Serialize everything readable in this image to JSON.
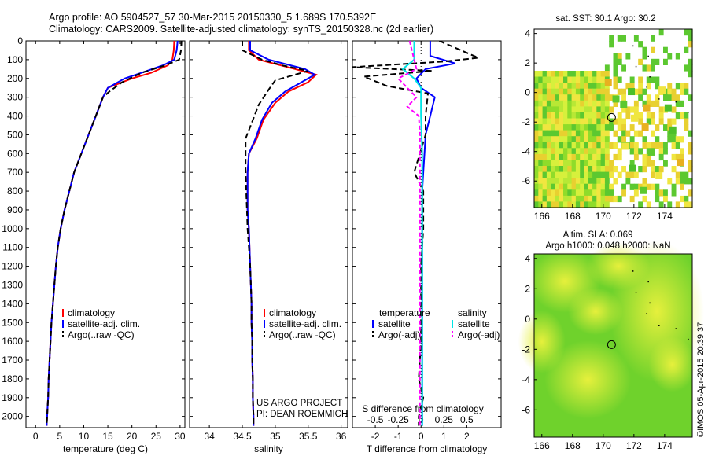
{
  "header": {
    "line1": "Argo profile: AO 5904527_57 30-Mar-2015 20150330_5 1.689S 170.5392E",
    "line2": "Climatology: CARS2009. Satellite-adjusted climatology: synTS_20150328.nc (2d earlier)"
  },
  "credit": {
    "project": "US ARGO PROJECT",
    "pi": "PI: DEAN ROEMMICH",
    "stamp": "©IMOS 05-Apr-2015 20:39:37"
  },
  "colors": {
    "climatology": "#ff0000",
    "satellite": "#0000ff",
    "argo": "#000000",
    "satellite_sal": "#00e5e5",
    "argo_sal": "#ff00ff"
  },
  "chart_data": [
    {
      "type": "line",
      "name": "temperature_panel",
      "xlabel": "temperature (deg C)",
      "xlim": [
        -2,
        31
      ],
      "xticks": [
        0,
        5,
        10,
        15,
        20,
        25,
        30
      ],
      "ylim": [
        2060,
        0
      ],
      "yticks": [
        0,
        100,
        200,
        300,
        400,
        500,
        600,
        700,
        800,
        900,
        1000,
        1100,
        1200,
        1300,
        1400,
        1500,
        1600,
        1700,
        1800,
        1900,
        2000
      ],
      "legend": [
        "climatology",
        "satellite-adj. clim.",
        "Argo(..raw -QC)"
      ],
      "series": [
        {
          "name": "climatology",
          "x": [
            28.8,
            28.7,
            28.4,
            27.5,
            24,
            20,
            15,
            14,
            12.5,
            11,
            9.5,
            8,
            7,
            6,
            5.2,
            4.6,
            4.2,
            3.9,
            3.6,
            3.3,
            3.1,
            2.9,
            2.7,
            2.6,
            2.5,
            2.4,
            2.3
          ],
          "y": [
            0,
            50,
            100,
            130,
            170,
            200,
            250,
            300,
            400,
            500,
            600,
            700,
            800,
            900,
            1000,
            1100,
            1200,
            1300,
            1400,
            1500,
            1600,
            1700,
            1800,
            1900,
            1950,
            2000,
            2050
          ]
        },
        {
          "name": "satellite-adj. clim.",
          "x": [
            29.5,
            29.3,
            28.8,
            26.5,
            22,
            18.5,
            15,
            14,
            12.5,
            11,
            9.5,
            8,
            7,
            6,
            5.2,
            4.6,
            4.2,
            3.9,
            3.6,
            3.3,
            3.1,
            2.9,
            2.7,
            2.6,
            2.5,
            2.4,
            2.3
          ],
          "y": [
            0,
            50,
            100,
            130,
            170,
            200,
            250,
            300,
            400,
            500,
            600,
            700,
            800,
            900,
            1000,
            1100,
            1200,
            1300,
            1400,
            1500,
            1600,
            1700,
            1800,
            1900,
            1950,
            2000,
            2050
          ]
        },
        {
          "name": "Argo(..raw -QC)",
          "x": [
            30.3,
            30.2,
            29.8,
            27,
            22,
            18,
            15.3,
            14,
            12.5,
            11,
            9.5,
            8,
            7,
            6,
            5.2,
            4.6,
            4.2,
            3.9,
            3.6,
            3.3,
            3.1,
            2.9,
            2.7,
            2.6,
            2.5,
            2.4,
            2.3
          ],
          "y": [
            0,
            50,
            100,
            130,
            170,
            220,
            270,
            300,
            400,
            500,
            600,
            700,
            800,
            900,
            1000,
            1100,
            1200,
            1300,
            1400,
            1500,
            1600,
            1700,
            1800,
            1900,
            1950,
            2000,
            2050
          ]
        }
      ]
    },
    {
      "type": "line",
      "name": "salinity_panel",
      "xlabel": "salinity",
      "xlim": [
        33.7,
        36.1
      ],
      "xticks": [
        34,
        34.5,
        35,
        35.5,
        36
      ],
      "xtick_labels": [
        "34",
        "34.5",
        "35",
        "35.5",
        "36"
      ],
      "ylim": [
        2060,
        0
      ],
      "legend": [
        "climatology",
        "satellite-adj. clim.",
        "Argo(..raw -QC)"
      ],
      "series": [
        {
          "name": "climatology",
          "x": [
            34.6,
            34.6,
            34.75,
            35.3,
            35.62,
            35.5,
            35.2,
            35.0,
            34.82,
            34.72,
            34.6,
            34.58,
            34.58,
            34.58,
            34.6,
            34.61,
            34.62,
            34.63,
            34.64,
            34.64,
            34.65,
            34.65,
            34.66,
            34.66,
            34.67,
            34.67
          ],
          "y": [
            0,
            50,
            100,
            150,
            180,
            220,
            270,
            330,
            420,
            520,
            600,
            700,
            800,
            900,
            1000,
            1100,
            1200,
            1300,
            1400,
            1500,
            1600,
            1700,
            1800,
            1900,
            2000,
            2050
          ]
        },
        {
          "name": "satellite-adj. clim.",
          "x": [
            34.62,
            34.62,
            34.9,
            35.45,
            35.6,
            35.4,
            35.15,
            34.95,
            34.8,
            34.7,
            34.6,
            34.58,
            34.58,
            34.58,
            34.6,
            34.61,
            34.62,
            34.63,
            34.64,
            34.64,
            34.65,
            34.65,
            34.66,
            34.66,
            34.67,
            34.67
          ],
          "y": [
            0,
            50,
            100,
            150,
            180,
            220,
            270,
            330,
            420,
            520,
            600,
            700,
            800,
            900,
            1000,
            1100,
            1200,
            1300,
            1400,
            1500,
            1600,
            1700,
            1800,
            1900,
            2000,
            2050
          ]
        },
        {
          "name": "Argo(..raw -QC)",
          "x": [
            34.5,
            34.5,
            34.8,
            35.1,
            35.5,
            35.0,
            34.9,
            34.75,
            34.65,
            34.55,
            34.55,
            34.55,
            34.56,
            34.57,
            34.58,
            34.6,
            34.62,
            34.63,
            34.64,
            34.64,
            34.65,
            34.65,
            34.66,
            34.66,
            34.67,
            34.67
          ],
          "y": [
            0,
            50,
            100,
            130,
            160,
            210,
            260,
            340,
            430,
            520,
            600,
            700,
            800,
            900,
            1000,
            1100,
            1200,
            1300,
            1400,
            1500,
            1600,
            1700,
            1800,
            1900,
            2000,
            2050
          ]
        }
      ]
    },
    {
      "type": "line",
      "name": "difference_panel",
      "xlabel": "T difference from climatology",
      "xlabel_top": "S difference from climatology",
      "xlim": [
        -3,
        3.5
      ],
      "xticks": [
        -2,
        -1,
        0,
        1,
        2
      ],
      "s_xticks": [
        -0.5,
        -0.25,
        0,
        0.25,
        0.5
      ],
      "ylim": [
        2060,
        0
      ],
      "legend": {
        "temperature_header": "temperature",
        "salinity_header": "salinity",
        "temperature": [
          "satellite",
          "Argo(-adj)"
        ],
        "salinity": [
          "satellite",
          "Argo(-adj)"
        ]
      },
      "series": [
        {
          "name": "temperature satellite",
          "x": [
            0.4,
            0.4,
            1.5,
            0.2,
            -0.2,
            0,
            0.6,
            0.4,
            0.2,
            0.15,
            0.1,
            0.05,
            0.05,
            0.05,
            0.05,
            0.05,
            0.05,
            0.05,
            0.05,
            0.05,
            0.05
          ],
          "y": [
            0,
            80,
            120,
            150,
            200,
            250,
            300,
            400,
            500,
            600,
            700,
            800,
            900,
            1000,
            1200,
            1400,
            1600,
            1800,
            1900,
            2000,
            2050
          ]
        },
        {
          "name": "temperature Argo(-adj)",
          "x": [
            0.8,
            2.5,
            1.0,
            -3,
            0.5,
            -2.5,
            -1.5,
            0.3,
            0.2,
            0.2,
            -0.3,
            0.1,
            0.1,
            0.0,
            0.0,
            0.0,
            -0.1,
            0.1,
            -0.1,
            -0.1
          ],
          "y": [
            0,
            90,
            110,
            140,
            160,
            190,
            240,
            280,
            400,
            500,
            700,
            800,
            1000,
            1200,
            1400,
            1600,
            1800,
            1900,
            2000,
            2050
          ]
        },
        {
          "name": "salinity satellite",
          "x": [
            -0.3,
            -0.3,
            -0.8,
            -0.3,
            0.0,
            0.0,
            0.05,
            0.05,
            0.05,
            0.05,
            0.05,
            0.05,
            0.05
          ],
          "y": [
            0,
            100,
            150,
            200,
            250,
            400,
            600,
            800,
            1000,
            1200,
            1500,
            1800,
            2050
          ]
        },
        {
          "name": "salinity Argo(-adj)",
          "x": [
            -0.5,
            -0.2,
            -1.0,
            -0.2,
            -0.6,
            -0.1,
            -0.05,
            -0.05,
            -0.05,
            -0.05
          ],
          "y": [
            0,
            150,
            200,
            300,
            350,
            400,
            500,
            1000,
            1500,
            2050
          ]
        }
      ]
    },
    {
      "type": "heatmap",
      "name": "sst_map",
      "title": "sat. SST: 30.1  Argo: 30.2",
      "xticks": [
        166,
        168,
        170,
        172,
        174
      ],
      "yticks": [
        4,
        2,
        0,
        -2,
        -4,
        -6
      ],
      "xlim": [
        165.5,
        175.8
      ],
      "ylim": [
        -7.8,
        4.3
      ],
      "argo_position": {
        "lon": 170.54,
        "lat": -1.69
      }
    },
    {
      "type": "heatmap",
      "name": "sla_map",
      "title": "Altim. SLA: 0.069",
      "subtitle": "Argo h1000: 0.048  h2000: NaN",
      "xticks": [
        166,
        168,
        170,
        172,
        174
      ],
      "yticks": [
        4,
        2,
        0,
        -2,
        -4,
        -6
      ],
      "xlim": [
        165.5,
        175.8
      ],
      "ylim": [
        -7.8,
        4.3
      ],
      "argo_position": {
        "lon": 170.54,
        "lat": -1.69
      }
    }
  ]
}
